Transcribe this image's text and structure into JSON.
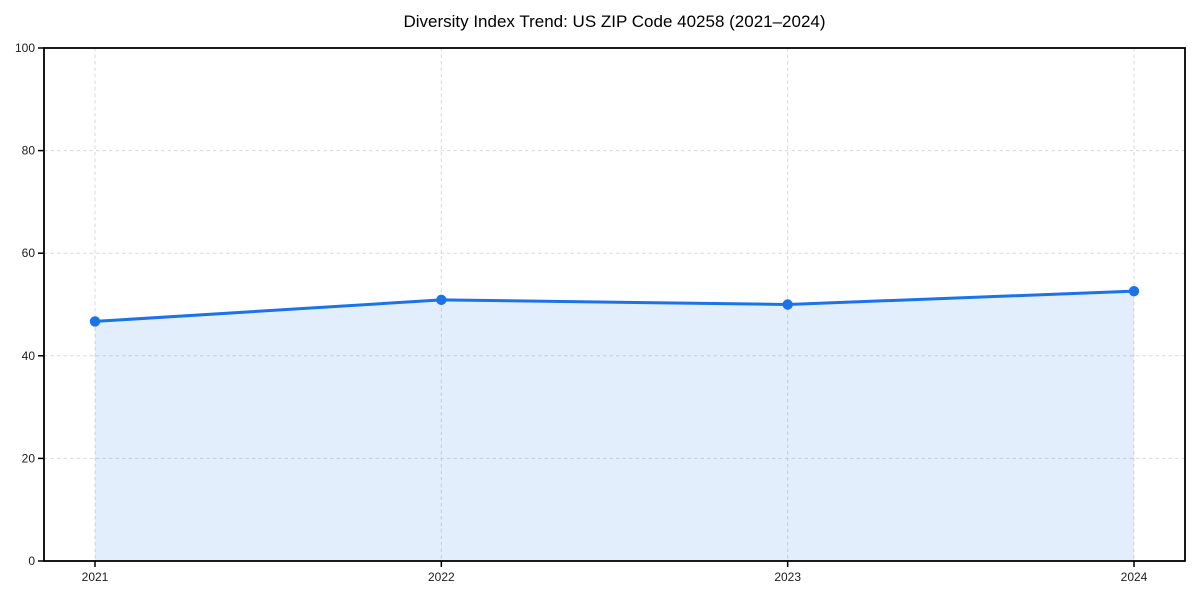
{
  "chart_data": {
    "type": "area",
    "title": "Diversity Index Trend: US ZIP Code 40258 (2021–2024)",
    "series_name": "Diversity Index",
    "categories": [
      "2021",
      "2022",
      "2023",
      "2024"
    ],
    "values": [
      46.7,
      50.9,
      50.0,
      52.6
    ],
    "xlabel": "",
    "ylabel": "",
    "ylim": [
      0,
      100
    ],
    "yticks": [
      0,
      20,
      40,
      60,
      80,
      100
    ],
    "grid": true,
    "grid_style": "dashed",
    "legend": "none",
    "marker": "circle",
    "colors": {
      "line": "#1a73e8",
      "marker": "#1a73e8",
      "fill": "rgba(26,115,232,0.12)",
      "grid": "#d9d9d9",
      "spine": "#000000",
      "tick_label": "#1c1c1c",
      "title": "#000000",
      "background": "#ffffff"
    }
  }
}
